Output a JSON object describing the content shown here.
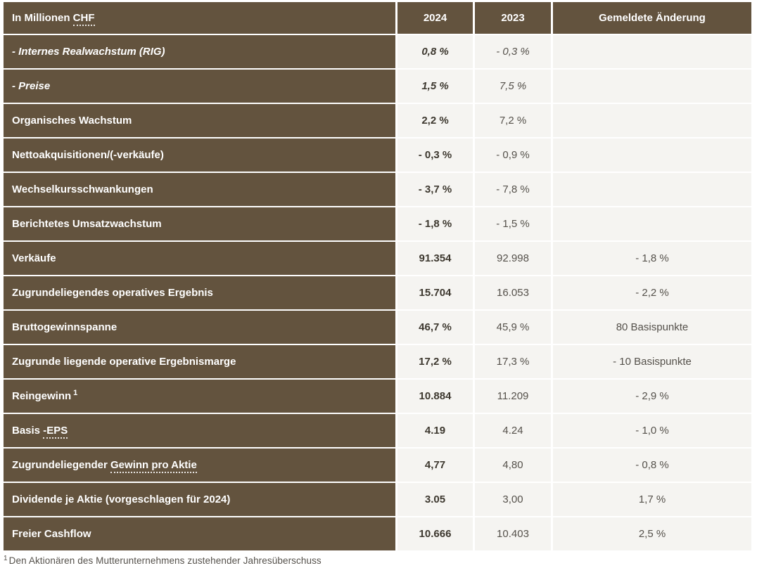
{
  "colors": {
    "header_and_label_bg": "#63533e",
    "cell_bg": "#f5f4f1",
    "bold_value_text": "#3d382f",
    "regular_value_text": "#55514b",
    "header_text": "#ffffff",
    "page_bg": "#ffffff"
  },
  "table": {
    "header": {
      "label_prefix": "In Millionen ",
      "label_term": "CHF",
      "col_2024": "2024",
      "col_2023": "2023",
      "col_change": "Gemeldete Änderung"
    },
    "rows": [
      {
        "label_prefix": "- Internes Realwachstum (RIG)",
        "italic": true,
        "v2024": "0,8 %",
        "v2023": "- 0,3 %",
        "change": ""
      },
      {
        "label_prefix": "- Preise",
        "italic": true,
        "v2024": "1,5 %",
        "v2023": "7,5 %",
        "change": ""
      },
      {
        "label_prefix": "Organisches Wachstum",
        "italic": false,
        "v2024": "2,2 %",
        "v2023": "7,2 %",
        "change": ""
      },
      {
        "label_prefix": "Nettoakquisitionen/(-verkäufe)",
        "italic": false,
        "v2024": "- 0,3 %",
        "v2023": "- 0,9 %",
        "change": ""
      },
      {
        "label_prefix": "Wechselkursschwankungen",
        "italic": false,
        "v2024": "- 3,7 %",
        "v2023": "- 7,8 %",
        "change": ""
      },
      {
        "label_prefix": "Berichtetes Umsatzwachstum",
        "italic": false,
        "v2024": "- 1,8 %",
        "v2023": "- 1,5 %",
        "change": ""
      },
      {
        "label_prefix": "Verkäufe",
        "italic": false,
        "v2024": "91.354",
        "v2023": "92.998",
        "change": "- 1,8 %"
      },
      {
        "label_prefix": "Zugrundeliegendes operatives Ergebnis",
        "italic": false,
        "v2024": "15.704",
        "v2023": "16.053",
        "change": "- 2,2 %"
      },
      {
        "label_prefix": "Bruttogewinnspanne",
        "italic": false,
        "v2024": "46,7 %",
        "v2023": "45,9 %",
        "change": "80 Basispunkte"
      },
      {
        "label_prefix": "Zugrunde liegende operative Ergebnismarge",
        "italic": false,
        "v2024": "17,2 %",
        "v2023": "17,3 %",
        "change": "- 10 Basispunkte"
      },
      {
        "label_prefix": "Reingewinn",
        "label_sup": "1",
        "italic": false,
        "v2024": "10.884",
        "v2023": "11.209",
        "change": "- 2,9 %"
      },
      {
        "label_prefix": "Basis ",
        "label_term": "-EPS",
        "italic": false,
        "v2024": "4.19",
        "v2023": "4.24",
        "change": "- 1,0 %"
      },
      {
        "label_prefix": "Zugrundeliegender ",
        "label_term": "Gewinn pro Aktie",
        "italic": false,
        "v2024": "4,77",
        "v2023": "4,80",
        "change": "- 0,8 %"
      },
      {
        "label_prefix": "Dividende je Aktie (vorgeschlagen für 2024)",
        "italic": false,
        "v2024": "3.05",
        "v2023": "3,00",
        "change": "1,7 %"
      },
      {
        "label_prefix": "Freier Cashflow",
        "italic": false,
        "v2024": "10.666",
        "v2023": "10.403",
        "change": "2,5 %"
      }
    ],
    "footnote_marker": "1",
    "footnote_text": "Den Aktionären des Mutterunternehmens zustehender Jahresüberschuss"
  }
}
